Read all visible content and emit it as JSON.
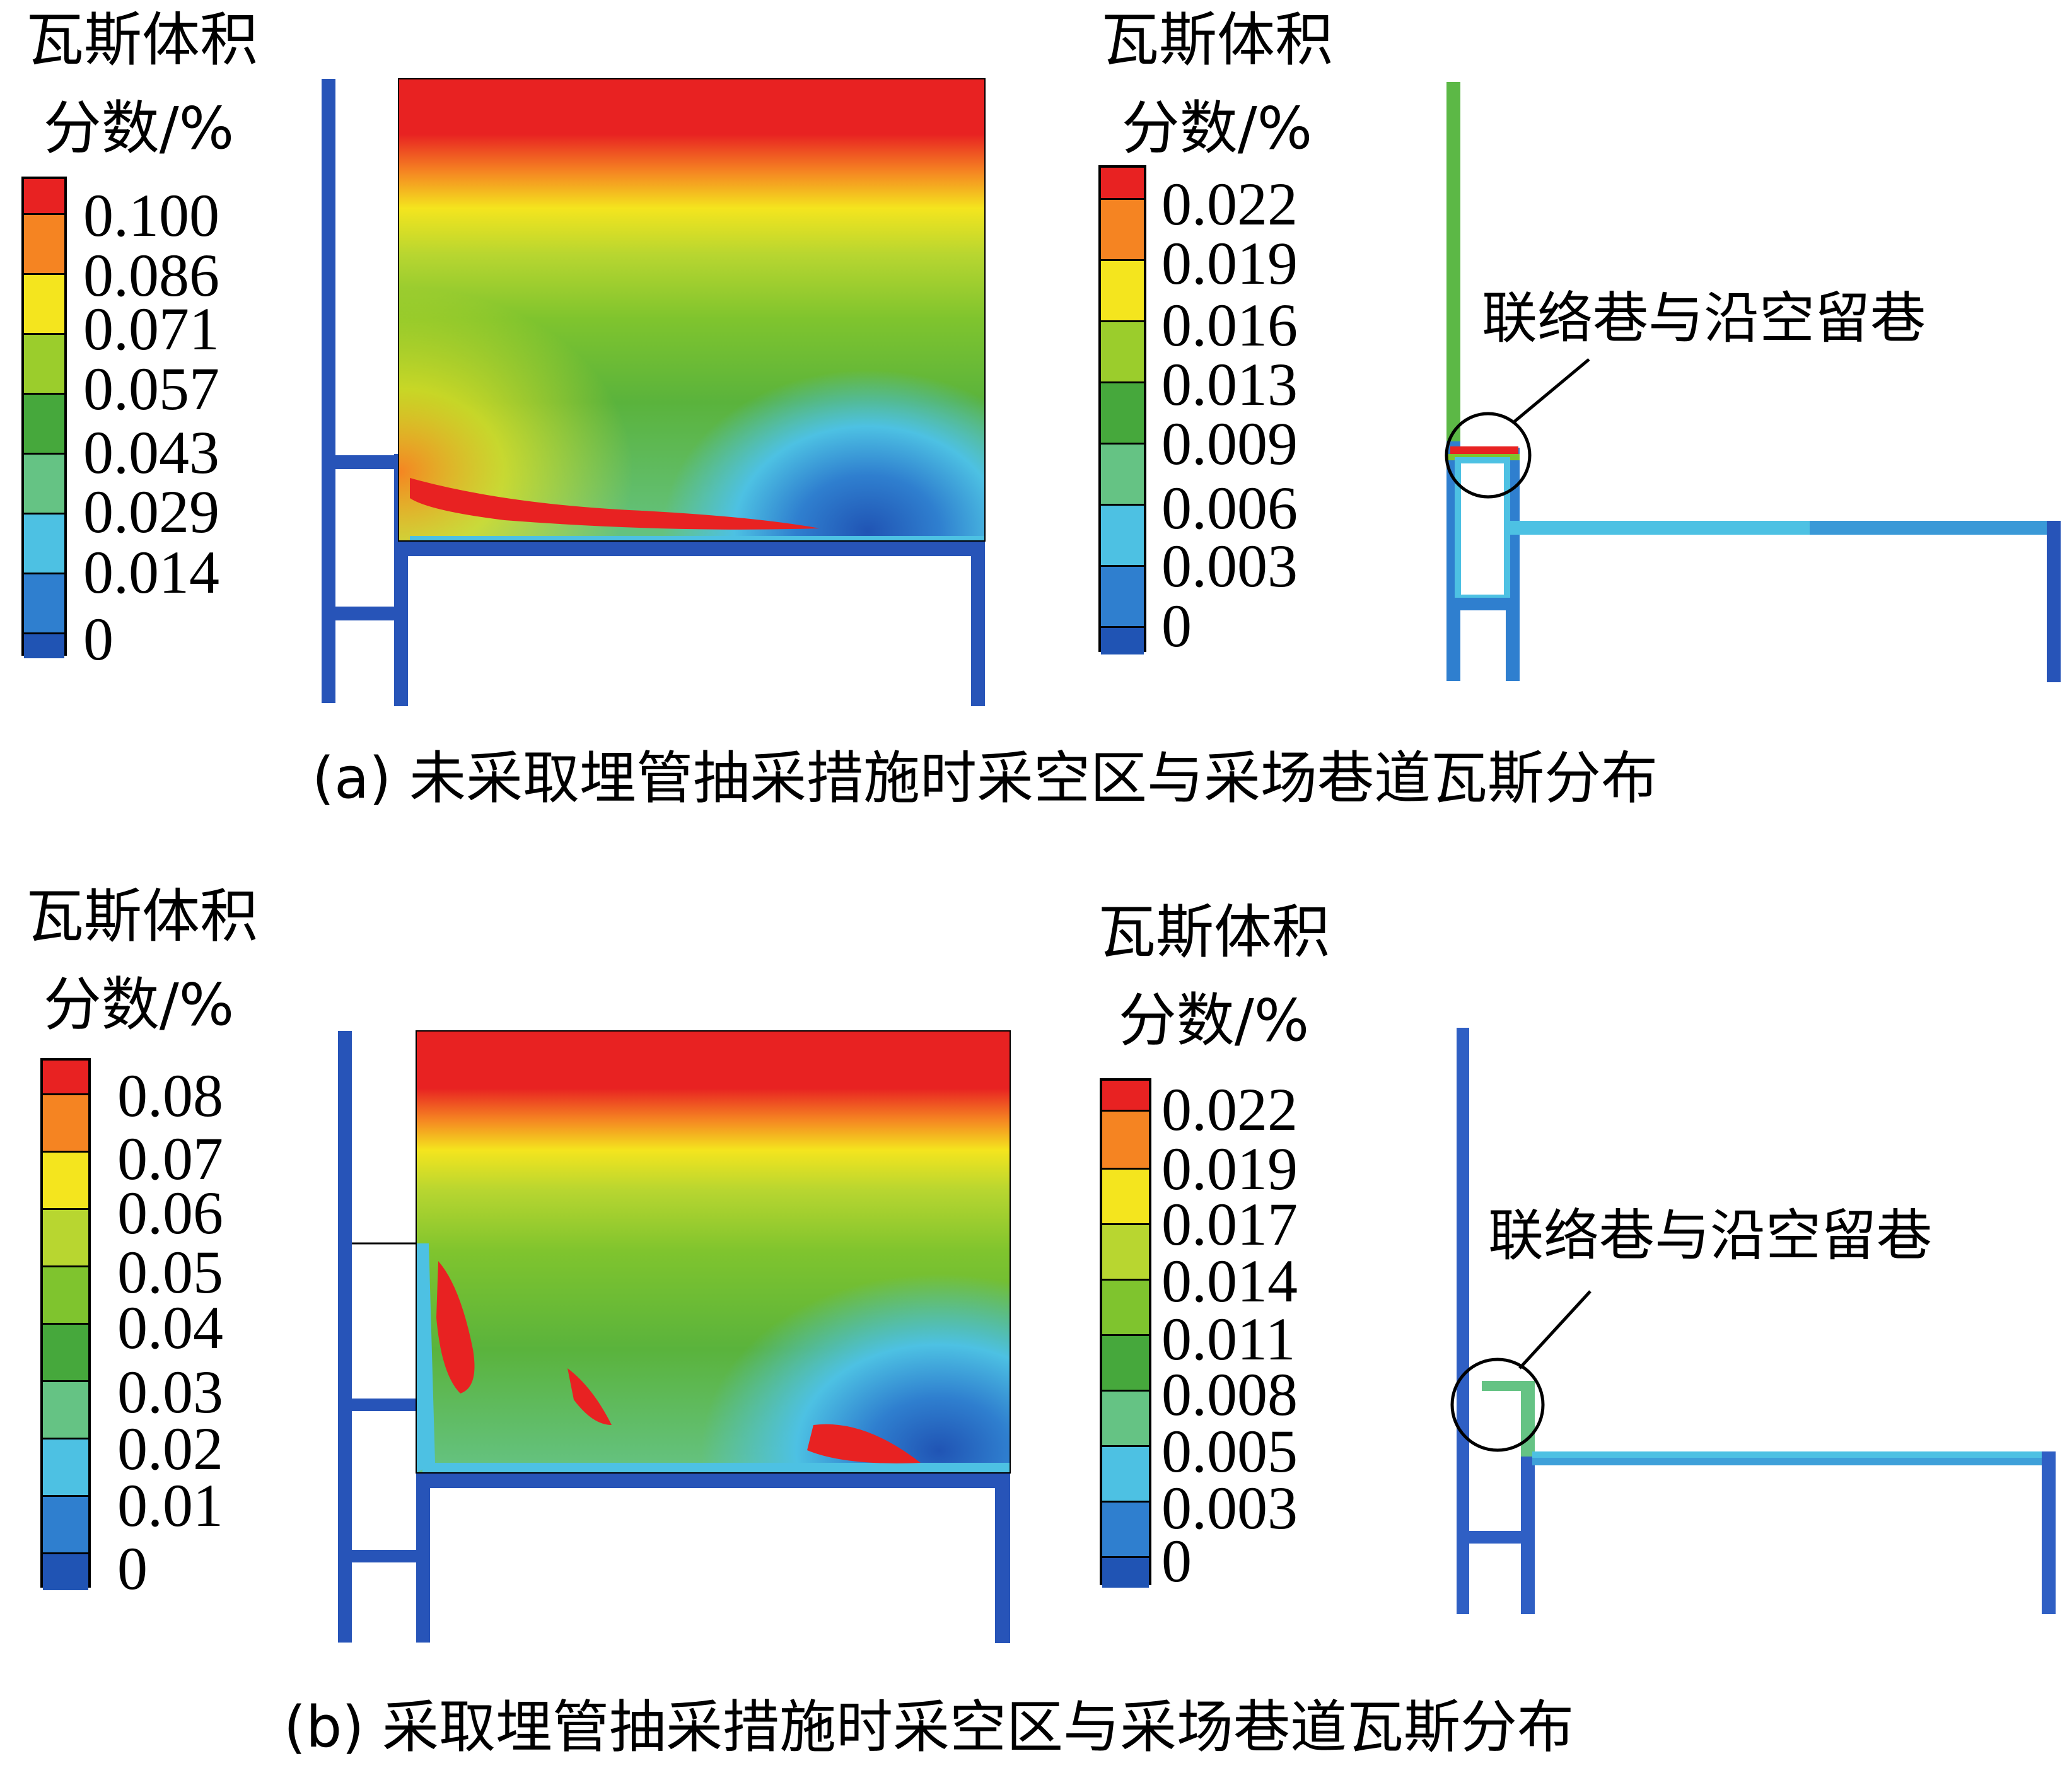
{
  "colors": {
    "c0": "#2054b4",
    "c1": "#2f7fcf",
    "c2": "#4dc1e3",
    "c3": "#65c384",
    "c4": "#46a83c",
    "c5": "#7fc42e",
    "c6": "#b8d630",
    "c7": "#f4e51e",
    "c8": "#f58422",
    "c9": "#e82222",
    "pipe": "#2754b8",
    "bg": "#ffffff"
  },
  "panel_a": {
    "legend_left": {
      "title_line1": "瓦斯体积",
      "title_line2": "分数/%",
      "ticks": [
        "0.100",
        "0.086",
        "0.071",
        "0.057",
        "0.043",
        "0.029",
        "0.014",
        "0"
      ]
    },
    "legend_right": {
      "title_line1": "瓦斯体积",
      "title_line2": "分数/%",
      "ticks": [
        "0.022",
        "0.019",
        "0.016",
        "0.013",
        "0.009",
        "0.006",
        "0.003",
        "0"
      ]
    },
    "annotation": "联络巷与沿空留巷",
    "caption": "(a) 未采取埋管抽采措施时采空区与采场巷道瓦斯分布"
  },
  "panel_b": {
    "legend_left": {
      "title_line1": "瓦斯体积",
      "title_line2": "分数/%",
      "ticks": [
        "0.08",
        "0.07",
        "0.06",
        "0.05",
        "0.04",
        "0.03",
        "0.02",
        "0.01",
        "0"
      ]
    },
    "legend_right": {
      "title_line1": "瓦斯体积",
      "title_line2": "分数/%",
      "ticks": [
        "0.022",
        "0.019",
        "0.017",
        "0.014",
        "0.011",
        "0.008",
        "0.005",
        "0.003",
        "0"
      ]
    },
    "annotation": "联络巷与沿空留巷",
    "caption": "(b) 采取埋管抽采措施时采空区与采场巷道瓦斯分布"
  }
}
